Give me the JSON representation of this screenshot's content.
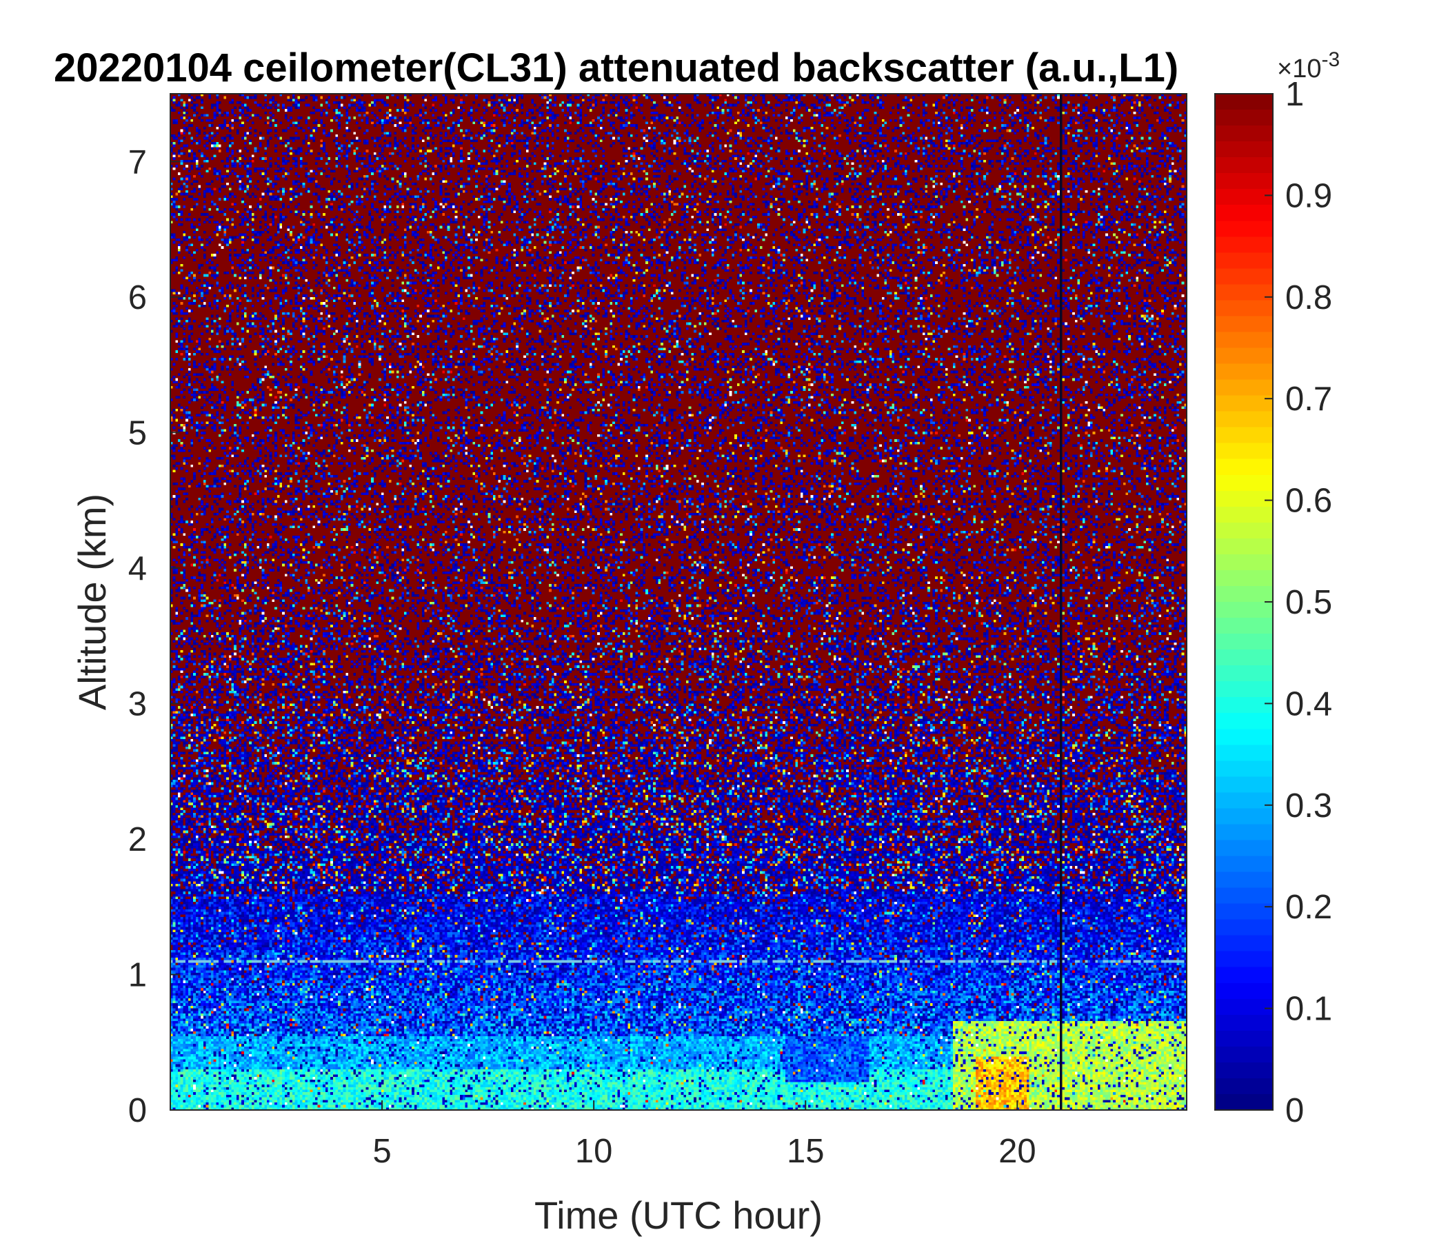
{
  "chart_data": {
    "type": "heatmap",
    "title": "20220104 ceilometer(CL31) attenuated backscatter (a.u.,L1)",
    "xlabel": "Time (UTC hour)",
    "ylabel": "Altitude (km)",
    "xlim": [
      0,
      24
    ],
    "ylim": [
      0,
      7.5
    ],
    "x_ticks": [
      5,
      10,
      15,
      20
    ],
    "y_ticks": [
      0,
      1,
      2,
      3,
      4,
      5,
      6,
      7
    ],
    "colorbar": {
      "range": [
        0,
        1
      ],
      "ticks": [
        0,
        0.1,
        0.2,
        0.3,
        0.4,
        0.5,
        0.6,
        0.7,
        0.8,
        0.9,
        1
      ],
      "multiplier_base": "×10",
      "multiplier_exponent": "-3",
      "colormap": "jet"
    },
    "features": [
      {
        "description": "surface layer",
        "x_range": [
          0,
          24
        ],
        "y_range": [
          0,
          0.3
        ],
        "value": 0.4
      },
      {
        "description": "aerosol layer",
        "x_range": [
          0,
          24
        ],
        "y_range": [
          0.3,
          0.55
        ],
        "value": 0.3
      },
      {
        "description": "enhanced layer",
        "x_range": [
          18.5,
          24
        ],
        "y_range": [
          0,
          0.65
        ],
        "value": 0.55
      },
      {
        "description": "peak",
        "x_range": [
          19,
          20.3
        ],
        "y_range": [
          0,
          0.4
        ],
        "value": 0.68
      },
      {
        "description": "lowered layer",
        "x_range": [
          14.5,
          16.5
        ],
        "y_range": [
          0.2,
          0.55
        ],
        "value": 0.22
      },
      {
        "description": "high-signal streak",
        "x_range": [
          0,
          0.8
        ],
        "y_range": [
          4.7,
          7.5
        ],
        "value": 1.0
      },
      {
        "description": "line",
        "x": 21,
        "y_range": [
          0,
          7.5
        ]
      },
      {
        "description": "line",
        "y": 1.1,
        "x_range": [
          0,
          24
        ]
      }
    ]
  }
}
